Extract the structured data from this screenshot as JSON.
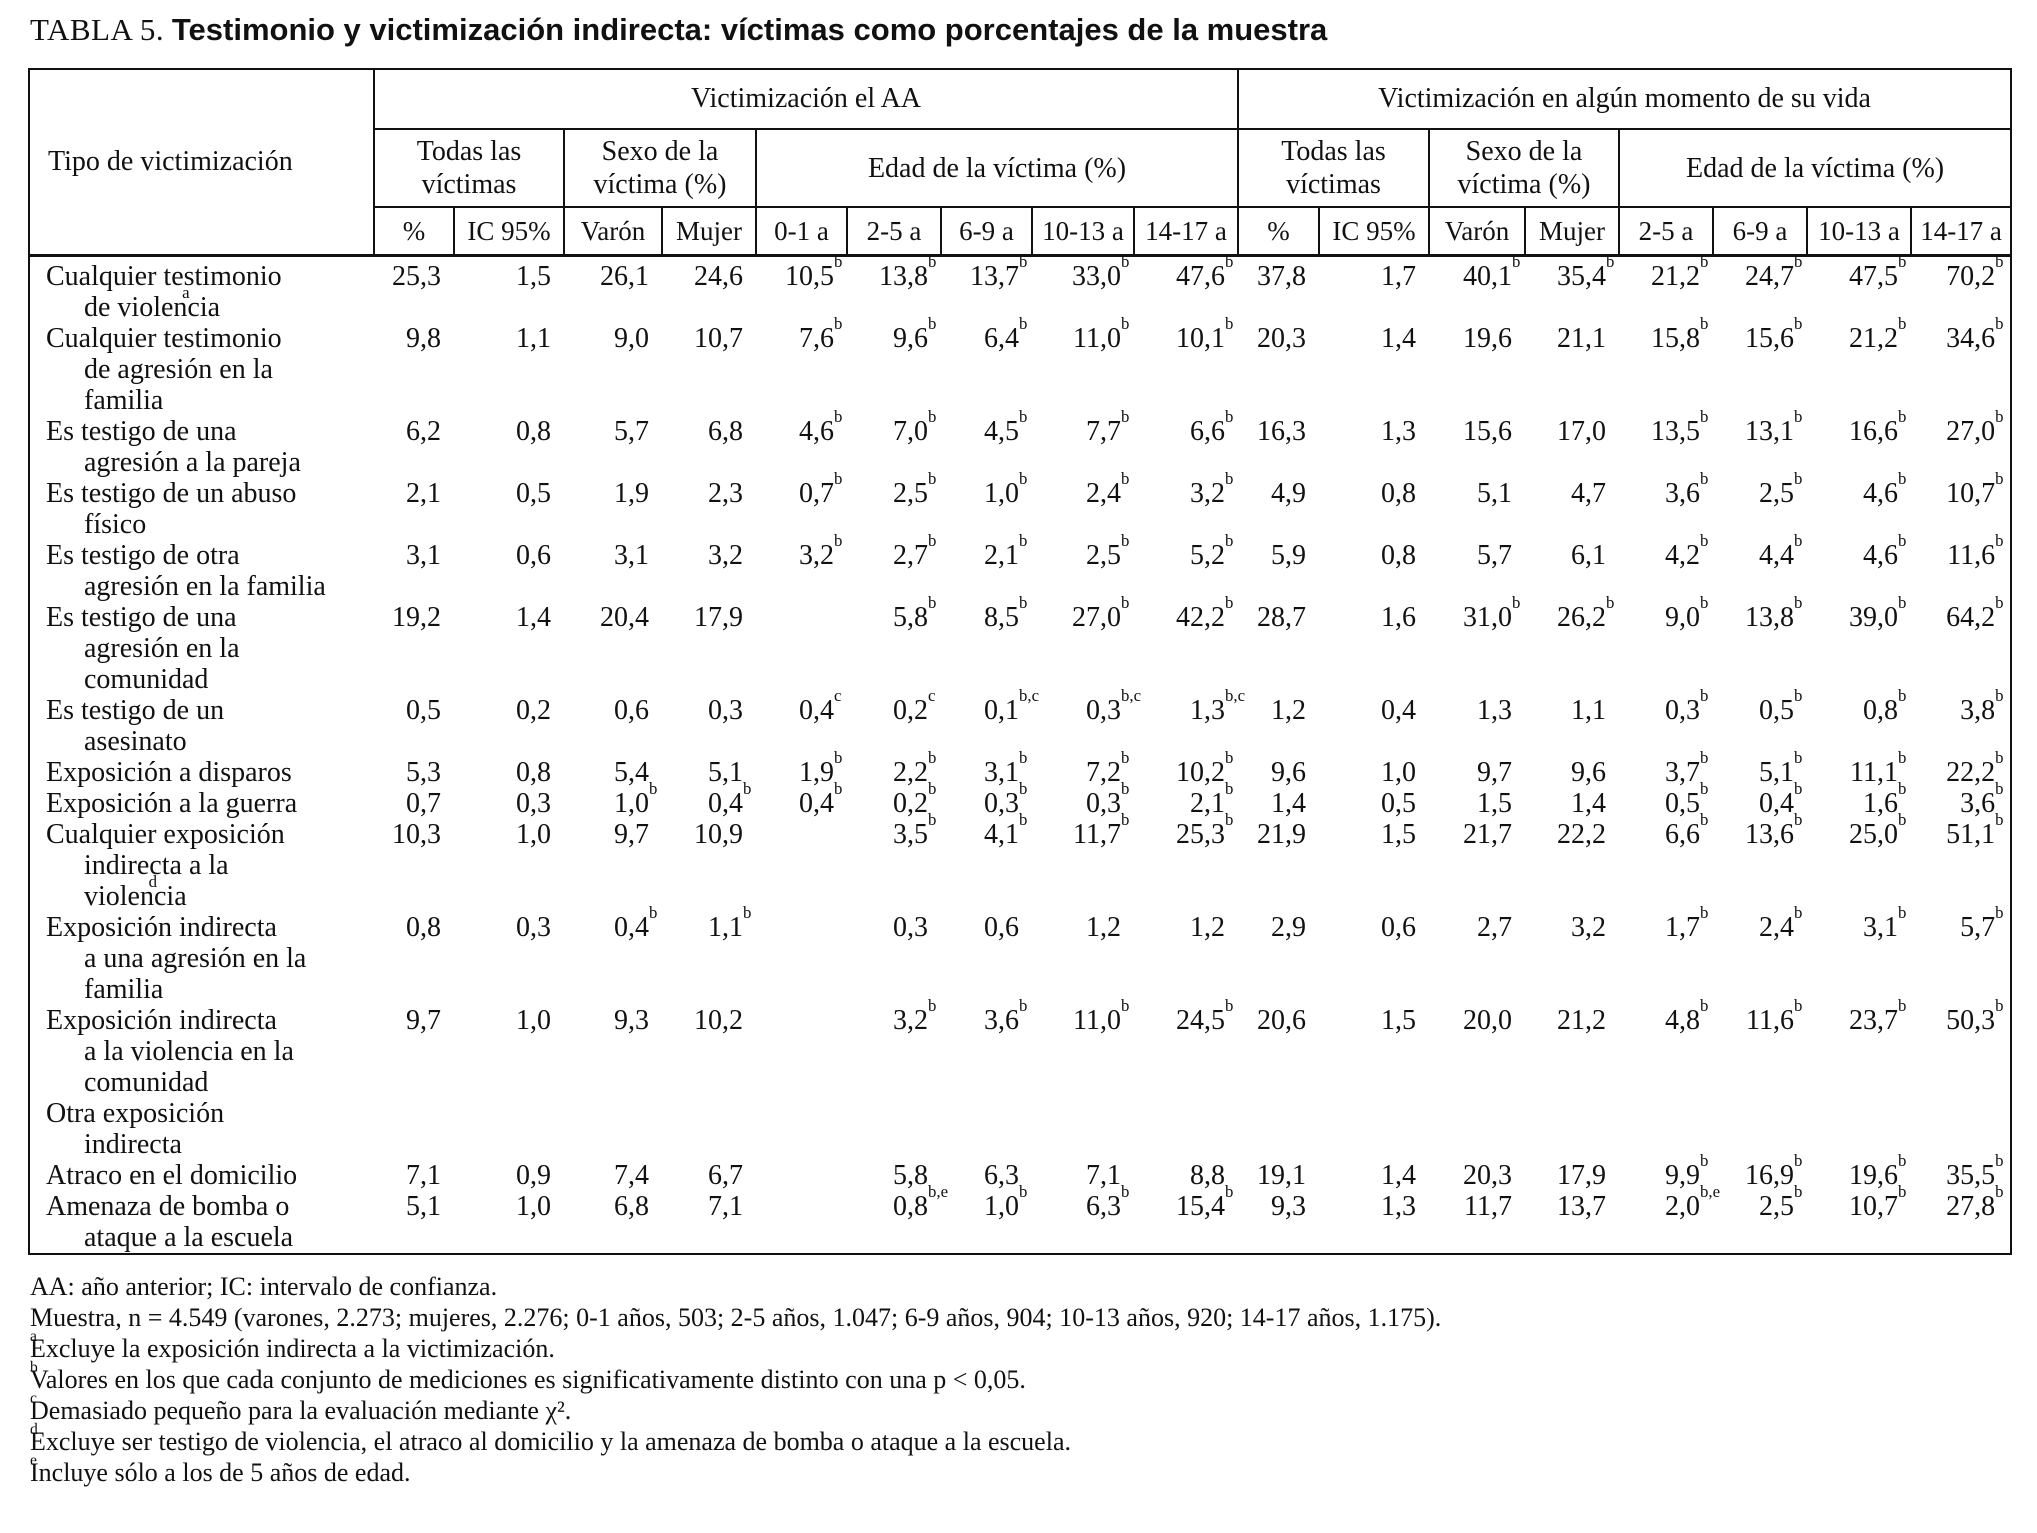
{
  "title": {
    "prefix": "TABLA 5.",
    "text": "Testimonio y victimización indirecta: víctimas como porcentajes de la muestra"
  },
  "table": {
    "header": {
      "tipo": "Tipo de victimización",
      "group_aa": "Victimización el AA",
      "group_life": "Victimización en algún momento de su vida",
      "sub_todas_aa": "Todas las víctimas",
      "sub_sexo_aa": "Sexo de la víctima (%)",
      "sub_edad_aa": "Edad de la víctima (%)",
      "sub_todas_life": "Todas las víctimas",
      "sub_sexo_life": "Sexo de la víctima (%)",
      "sub_edad_life": "Edad de la víctima (%)",
      "cols_aa": [
        "%",
        "IC 95%",
        "Varón",
        "Mujer",
        "0-1 a",
        "2-5 a",
        "6-9 a",
        "10-13 a",
        "14-17 a"
      ],
      "cols_life": [
        "%",
        "IC 95%",
        "Varón",
        "Mujer",
        "2-5 a",
        "6-9 a",
        "10-13 a",
        "14-17 a"
      ]
    },
    "rows": [
      {
        "label": "Cualquier testimonio\nde violencia^a",
        "aa": [
          "25,3",
          "1,5",
          "26,1",
          "24,6",
          "10,5^b",
          "13,8^b",
          "13,7^b",
          "33,0^b",
          "47,6^b"
        ],
        "life": [
          "37,8",
          "1,7",
          "40,1^b",
          "35,4^b",
          "21,2^b",
          "24,7^b",
          "47,5^b",
          "70,2^b"
        ]
      },
      {
        "label": "Cualquier testimonio\nde agresión en la\nfamilia",
        "aa": [
          "9,8",
          "1,1",
          "9,0",
          "10,7",
          "7,6^b",
          "9,6^b",
          "6,4^b",
          "11,0^b",
          "10,1^b"
        ],
        "life": [
          "20,3",
          "1,4",
          "19,6",
          "21,1",
          "15,8^b",
          "15,6^b",
          "21,2^b",
          "34,6^b"
        ]
      },
      {
        "label": "Es testigo de una\nagresión a la pareja",
        "aa": [
          "6,2",
          "0,8",
          "5,7",
          "6,8",
          "4,6^b",
          "7,0^b",
          "4,5^b",
          "7,7^b",
          "6,6^b"
        ],
        "life": [
          "16,3",
          "1,3",
          "15,6",
          "17,0",
          "13,5^b",
          "13,1^b",
          "16,6^b",
          "27,0^b"
        ]
      },
      {
        "label": "Es testigo de un abuso\nfísico",
        "aa": [
          "2,1",
          "0,5",
          "1,9",
          "2,3",
          "0,7^b",
          "2,5^b",
          "1,0^b",
          "2,4^b",
          "3,2^b"
        ],
        "life": [
          "4,9",
          "0,8",
          "5,1",
          "4,7",
          "3,6^b",
          "2,5^b",
          "4,6^b",
          "10,7^b"
        ]
      },
      {
        "label": "Es testigo de otra\nagresión en la familia",
        "aa": [
          "3,1",
          "0,6",
          "3,1",
          "3,2",
          "3,2^b",
          "2,7^b",
          "2,1^b",
          "2,5^b",
          "5,2^b"
        ],
        "life": [
          "5,9",
          "0,8",
          "5,7",
          "6,1",
          "4,2^b",
          "4,4^b",
          "4,6^b",
          "11,6^b"
        ]
      },
      {
        "label": "Es testigo de una\nagresión en la\ncomunidad",
        "aa": [
          "19,2",
          "1,4",
          "20,4",
          "17,9",
          "",
          "5,8^b",
          "8,5^b",
          "27,0^b",
          "42,2^b"
        ],
        "life": [
          "28,7",
          "1,6",
          "31,0^b",
          "26,2^b",
          "9,0^b",
          "13,8^b",
          "39,0^b",
          "64,2^b"
        ]
      },
      {
        "label": "Es testigo de un\nasesinato",
        "aa": [
          "0,5",
          "0,2",
          "0,6",
          "0,3",
          "0,4^c",
          "0,2^c",
          "0,1^b,c",
          "0,3^b,c",
          "1,3^b,c"
        ],
        "life": [
          "1,2",
          "0,4",
          "1,3",
          "1,1",
          "0,3^b",
          "0,5^b",
          "0,8^b",
          "3,8^b"
        ]
      },
      {
        "label": "Exposición a disparos",
        "aa": [
          "5,3",
          "0,8",
          "5,4",
          "5,1",
          "1,9^b",
          "2,2^b",
          "3,1^b",
          "7,2^b",
          "10,2^b"
        ],
        "life": [
          "9,6",
          "1,0",
          "9,7",
          "9,6",
          "3,7^b",
          "5,1^b",
          "11,1^b",
          "22,2^b"
        ]
      },
      {
        "label": "Exposición a la guerra",
        "aa": [
          "0,7",
          "0,3",
          "1,0^b",
          "0,4^b",
          "0,4^b",
          "0,2^b",
          "0,3^b",
          "0,3^b",
          "2,1^b"
        ],
        "life": [
          "1,4",
          "0,5",
          "1,5",
          "1,4",
          "0,5^b",
          "0,4^b",
          "1,6^b",
          "3,6^b"
        ]
      },
      {
        "label": "Cualquier exposición\nindirecta a la\nviolencia^d",
        "aa": [
          "10,3",
          "1,0",
          "9,7",
          "10,9",
          "",
          "3,5^b",
          "4,1^b",
          "11,7^b",
          "25,3^b"
        ],
        "life": [
          "21,9",
          "1,5",
          "21,7",
          "22,2",
          "6,6^b",
          "13,6^b",
          "25,0^b",
          "51,1^b"
        ]
      },
      {
        "label": "Exposición indirecta\na una agresión en la\nfamilia",
        "aa": [
          "0,8",
          "0,3",
          "0,4^b",
          "1,1^b",
          "",
          "0,3",
          "0,6",
          "1,2",
          "1,2"
        ],
        "life": [
          "2,9",
          "0,6",
          "2,7",
          "3,2",
          "1,7^b",
          "2,4^b",
          "3,1^b",
          "5,7^b"
        ]
      },
      {
        "label": "Exposición indirecta\na la violencia en la\ncomunidad",
        "aa": [
          "9,7",
          "1,0",
          "9,3",
          "10,2",
          "",
          "3,2^b",
          "3,6^b",
          "11,0^b",
          "24,5^b"
        ],
        "life": [
          "20,6",
          "1,5",
          "20,0",
          "21,2",
          "4,8^b",
          "11,6^b",
          "23,7^b",
          "50,3^b"
        ]
      },
      {
        "label": "Otra exposición\nindirecta",
        "aa": [
          "",
          "",
          "",
          "",
          "",
          "",
          "",
          "",
          ""
        ],
        "life": [
          "",
          "",
          "",
          "",
          "",
          "",
          "",
          ""
        ]
      },
      {
        "label": "Atraco en el domicilio",
        "aa": [
          "7,1",
          "0,9",
          "7,4",
          "6,7",
          "",
          "5,8",
          "6,3",
          "7,1",
          "8,8"
        ],
        "life": [
          "19,1",
          "1,4",
          "20,3",
          "17,9",
          "9,9^b",
          "16,9^b",
          "19,6^b",
          "35,5^b"
        ]
      },
      {
        "label": "Amenaza de bomba o\nataque a la escuela",
        "aa": [
          "5,1",
          "1,0",
          "6,8",
          "7,1",
          "",
          "0,8^b,e",
          "1,0^b",
          "6,3^b",
          "15,4^b"
        ],
        "life": [
          "9,3",
          "1,3",
          "11,7",
          "13,7",
          "2,0^b,e",
          "2,5^b",
          "10,7^b",
          "27,8^b"
        ]
      }
    ]
  },
  "footnotes": [
    {
      "sup": "",
      "text": "AA: año anterior; IC: intervalo de confianza."
    },
    {
      "sup": "",
      "text": "Muestra, n = 4.549 (varones, 2.273; mujeres, 2.276; 0-1 años, 503; 2-5 años, 1.047; 6-9 años, 904; 10-13 años, 920; 14-17 años, 1.175)."
    },
    {
      "sup": "a",
      "text": "Excluye la exposición indirecta a la victimización."
    },
    {
      "sup": "b",
      "text": "Valores en los que cada conjunto de mediciones es significativamente distinto con una p < 0,05."
    },
    {
      "sup": "c",
      "text": "Demasiado pequeño para la evaluación mediante χ²."
    },
    {
      "sup": "d",
      "text": "Excluye ser testigo de violencia, el atraco al domicilio y la amenaza de bomba o ataque a la escuela."
    },
    {
      "sup": "e",
      "text": "Incluye sólo a los de 5 años de edad."
    }
  ]
}
